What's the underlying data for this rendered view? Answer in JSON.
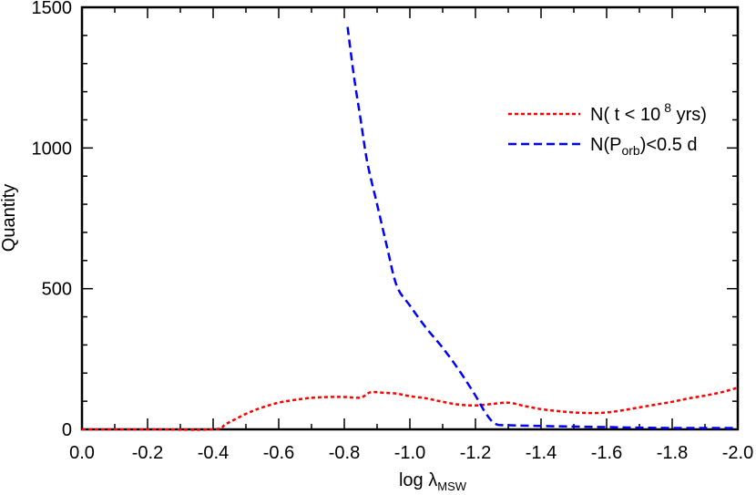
{
  "chart_data": {
    "type": "line",
    "xlabel": "log λ",
    "xlabel_subscript": "MSW",
    "ylabel": "Quantity",
    "xlim": [
      0.0,
      -2.0
    ],
    "ylim": [
      0,
      1500
    ],
    "x_ticks": [
      "0.0",
      "-0.2",
      "-0.4",
      "-0.6",
      "-0.8",
      "-1.0",
      "-1.2",
      "-1.4",
      "-1.6",
      "-1.8",
      "-2.0"
    ],
    "y_ticks": [
      "0",
      "500",
      "1000",
      "1500"
    ],
    "legend_position": "top-right",
    "series": [
      {
        "name": "N( t < 10⁸ yrs)",
        "label_parts": {
          "pre": "N( t < 10",
          "sup": "8",
          "post": " yrs)"
        },
        "color": "#ff0000",
        "dash": "dotted",
        "points": [
          [
            0.0,
            0
          ],
          [
            -0.2,
            0
          ],
          [
            -0.4,
            0
          ],
          [
            -0.44,
            20
          ],
          [
            -0.5,
            55
          ],
          [
            -0.55,
            78
          ],
          [
            -0.6,
            95
          ],
          [
            -0.65,
            105
          ],
          [
            -0.7,
            112
          ],
          [
            -0.75,
            115
          ],
          [
            -0.8,
            115
          ],
          [
            -0.85,
            113
          ],
          [
            -0.88,
            132
          ],
          [
            -0.92,
            130
          ],
          [
            -0.96,
            127
          ],
          [
            -1.0,
            118
          ],
          [
            -1.05,
            110
          ],
          [
            -1.1,
            98
          ],
          [
            -1.15,
            88
          ],
          [
            -1.2,
            85
          ],
          [
            -1.25,
            90
          ],
          [
            -1.3,
            95
          ],
          [
            -1.35,
            83
          ],
          [
            -1.4,
            72
          ],
          [
            -1.45,
            65
          ],
          [
            -1.5,
            60
          ],
          [
            -1.55,
            58
          ],
          [
            -1.6,
            60
          ],
          [
            -1.65,
            68
          ],
          [
            -1.7,
            78
          ],
          [
            -1.75,
            88
          ],
          [
            -1.8,
            98
          ],
          [
            -1.85,
            110
          ],
          [
            -1.9,
            120
          ],
          [
            -1.95,
            132
          ],
          [
            -2.0,
            148
          ]
        ]
      },
      {
        "name": "N(Porb)<0.5 d",
        "label_parts": {
          "pre": "N(P",
          "sub": "orb",
          "post": ")<0.5 d"
        },
        "color": "#0000ff",
        "dash": "dashed",
        "points": [
          [
            -0.81,
            1430
          ],
          [
            -0.83,
            1250
          ],
          [
            -0.85,
            1100
          ],
          [
            -0.87,
            950
          ],
          [
            -0.9,
            800
          ],
          [
            -0.93,
            650
          ],
          [
            -0.96,
            510
          ],
          [
            -1.0,
            440
          ],
          [
            -1.05,
            360
          ],
          [
            -1.1,
            290
          ],
          [
            -1.15,
            210
          ],
          [
            -1.2,
            120
          ],
          [
            -1.23,
            60
          ],
          [
            -1.26,
            20
          ],
          [
            -1.3,
            15
          ],
          [
            -1.4,
            12
          ],
          [
            -1.5,
            10
          ],
          [
            -1.6,
            8
          ],
          [
            -1.7,
            6
          ],
          [
            -1.8,
            5
          ],
          [
            -1.9,
            5
          ],
          [
            -2.0,
            5
          ]
        ]
      }
    ]
  }
}
